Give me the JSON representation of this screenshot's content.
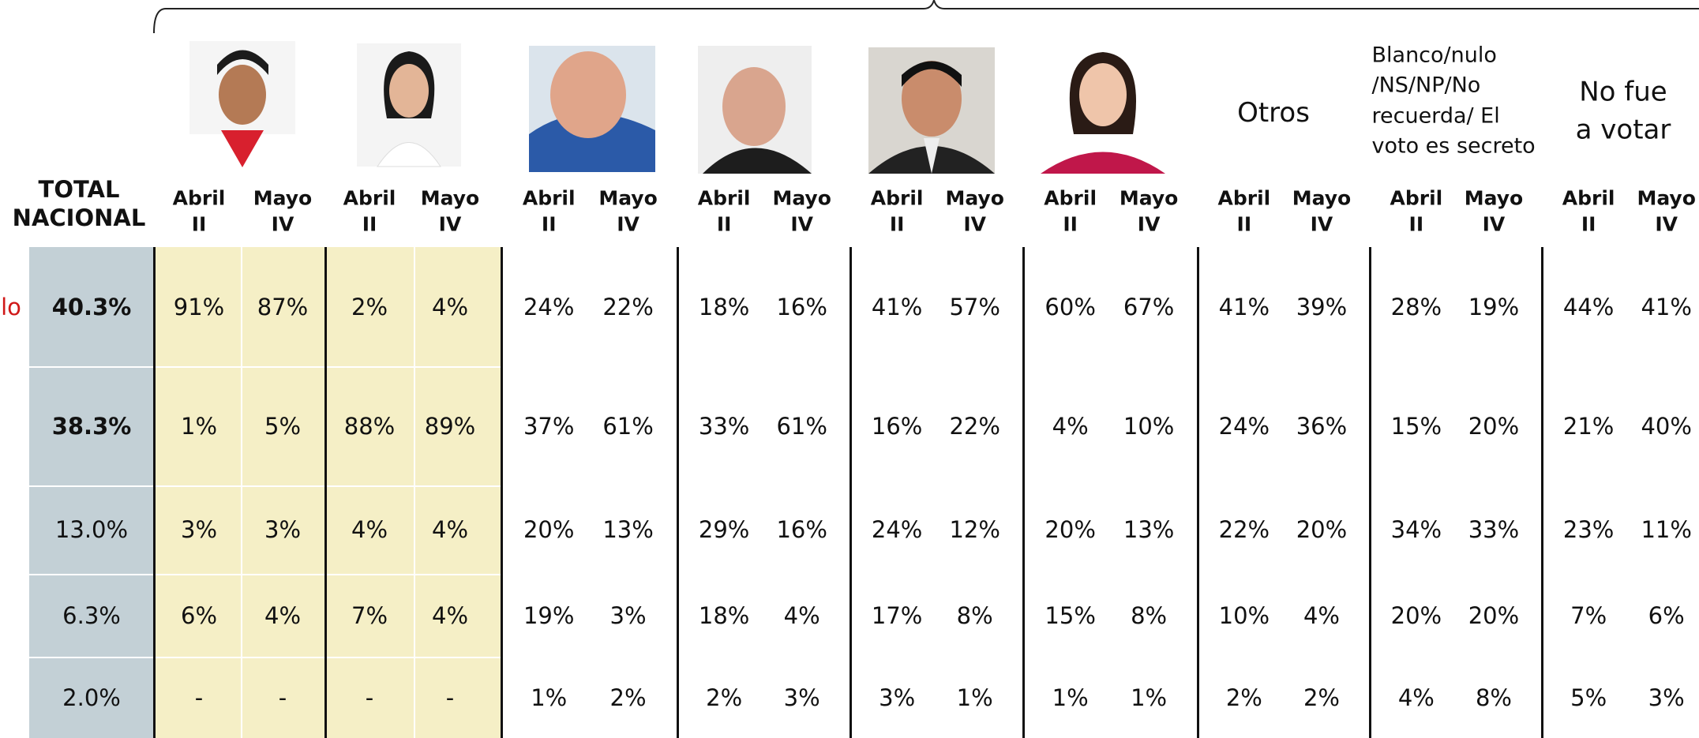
{
  "total_header": "TOTAL NACIONAL",
  "groups": [
    {
      "subheaders": [
        "Abril II",
        "Mayo IV"
      ]
    },
    {
      "subheaders": [
        "Abril II",
        "Mayo IV"
      ]
    },
    {
      "subheaders": [
        "Abril II",
        "Mayo IV"
      ]
    },
    {
      "subheaders": [
        "Abril II",
        "Mayo IV"
      ]
    },
    {
      "subheaders": [
        "Abril II",
        "Mayo IV"
      ]
    },
    {
      "subheaders": [
        "Abril II",
        "Mayo IV"
      ]
    },
    {
      "title": "Otros",
      "subheaders": [
        "Abril II",
        "Mayo IV"
      ]
    },
    {
      "title": "Blanco/nulo /NS/NP/No recuerda/ El voto es secreto",
      "subheaders": [
        "Abril II",
        "Mayo IV"
      ]
    },
    {
      "title": "No fue a votar",
      "subheaders": [
        "Abril II",
        "Mayo IV"
      ]
    }
  ],
  "rows": [
    {
      "label": "lo",
      "total": "40.3%",
      "values": [
        "91%",
        "87%",
        "2%",
        "4%",
        "24%",
        "22%",
        "18%",
        "16%",
        "41%",
        "57%",
        "60%",
        "67%",
        "41%",
        "39%",
        "28%",
        "19%",
        "44%",
        "41%"
      ]
    },
    {
      "total": "38.3%",
      "values": [
        "1%",
        "5%",
        "88%",
        "89%",
        "37%",
        "61%",
        "33%",
        "61%",
        "16%",
        "22%",
        "4%",
        "10%",
        "24%",
        "36%",
        "15%",
        "20%",
        "21%",
        "40%"
      ]
    },
    {
      "total": "13.0%",
      "values": [
        "3%",
        "3%",
        "4%",
        "4%",
        "20%",
        "13%",
        "29%",
        "16%",
        "24%",
        "12%",
        "20%",
        "13%",
        "22%",
        "20%",
        "34%",
        "33%",
        "23%",
        "11%"
      ]
    },
    {
      "total": "6.3%",
      "values": [
        "6%",
        "4%",
        "7%",
        "4%",
        "19%",
        "3%",
        "18%",
        "4%",
        "17%",
        "8%",
        "15%",
        "8%",
        "10%",
        "4%",
        "20%",
        "20%",
        "7%",
        "6%"
      ]
    },
    {
      "total": "2.0%",
      "values": [
        "-",
        "-",
        "-",
        "-",
        "1%",
        "2%",
        "2%",
        "3%",
        "3%",
        "1%",
        "1%",
        "1%",
        "2%",
        "2%",
        "4%",
        "8%",
        "5%",
        "3%"
      ]
    }
  ]
}
